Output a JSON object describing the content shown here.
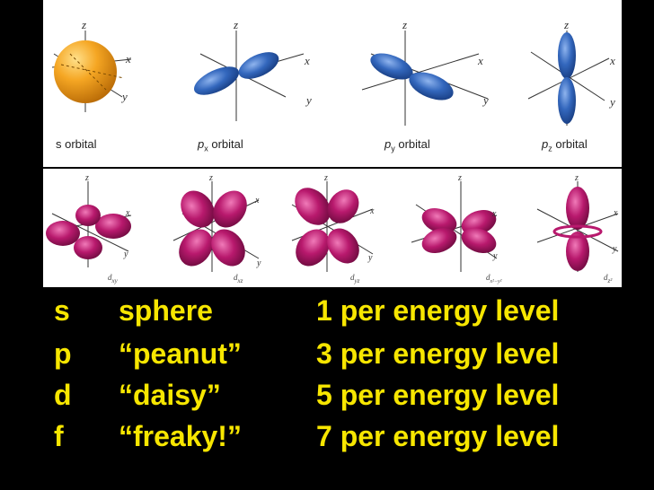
{
  "axes": {
    "z": "z",
    "x": "x",
    "y": "y"
  },
  "p_orbitals": {
    "s": "s orbital",
    "px_main": "p",
    "px_sub": "x",
    "px_tail": " orbital",
    "py_main": "p",
    "py_sub": "y",
    "py_tail": " orbital",
    "pz_main": "p",
    "pz_sub": "z",
    "pz_tail": " orbital"
  },
  "d_orbitals": {
    "dxy_main": "d",
    "dxy_sub": "xy",
    "dxz_main": "d",
    "dxz_sub": "xz",
    "dyz_main": "d",
    "dyz_sub": "yz",
    "dx2y2_main": "d",
    "dx2y2_sub": "x²−y²",
    "dz2_main": "d",
    "dz2_sub": "z²"
  },
  "legend": [
    {
      "letter": "s",
      "nickname": "sphere",
      "count": "1 per energy level"
    },
    {
      "letter": "p",
      "nickname": "“peanut”",
      "count": "3 per energy level"
    },
    {
      "letter": "d",
      "nickname": "“daisy”",
      "count": "5 per energy level"
    },
    {
      "letter": "f",
      "nickname": "“freaky!”",
      "count": "7 per energy level"
    }
  ],
  "colors": {
    "s_orbital": "#f2a21a",
    "p_orbital": "#2f63b8",
    "d_orbital": "#b0186a",
    "legend_text": "#f7e600",
    "background": "#000000"
  }
}
